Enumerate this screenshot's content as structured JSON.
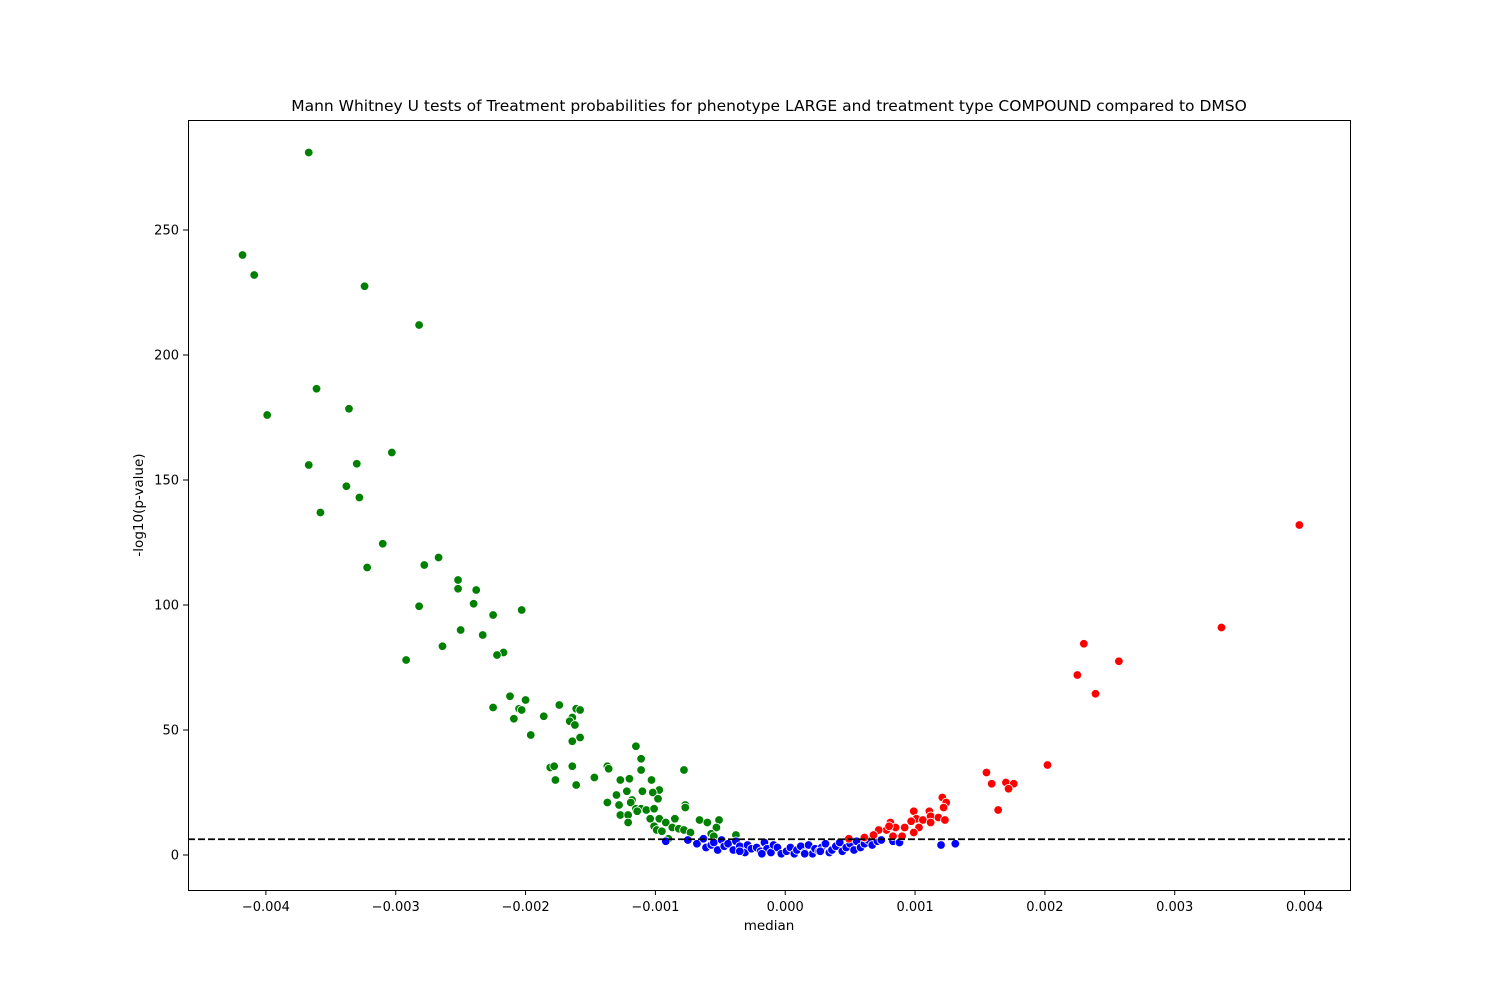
{
  "chart_data": {
    "type": "scatter",
    "title": "Mann Whitney U tests of Treatment probabilities for phenotype LARGE and treatment type COMPOUND compared to DMSO",
    "xlabel": "median",
    "ylabel": "-log10(p-value)",
    "xlim": [
      -0.0046,
      0.00435
    ],
    "ylim": [
      -14,
      294
    ],
    "xticks": [
      -0.004,
      -0.003,
      -0.002,
      -0.001,
      0.0,
      0.001,
      0.002,
      0.003,
      0.004
    ],
    "xtick_labels": [
      "−0.004",
      "−0.003",
      "−0.002",
      "−0.001",
      "0.000",
      "0.001",
      "0.002",
      "0.003",
      "0.004"
    ],
    "yticks": [
      0,
      50,
      100,
      150,
      200,
      250
    ],
    "ytick_labels": [
      "0",
      "50",
      "100",
      "150",
      "200",
      "250"
    ],
    "grid": false,
    "threshold": {
      "y": 6.3,
      "style": "dashed",
      "color": "#000000"
    },
    "series": [
      {
        "color": "#008000",
        "points": [
          [
            -0.00367,
            281
          ],
          [
            -0.00418,
            240
          ],
          [
            -0.00409,
            232
          ],
          [
            -0.00324,
            227.5
          ],
          [
            -0.00282,
            212
          ],
          [
            -0.00361,
            186.5
          ],
          [
            -0.00399,
            176
          ],
          [
            -0.00336,
            178.5
          ],
          [
            -0.00303,
            161
          ],
          [
            -0.00367,
            156
          ],
          [
            -0.0033,
            156.5
          ],
          [
            -0.00338,
            147.5
          ],
          [
            -0.00328,
            143
          ],
          [
            -0.00358,
            137
          ],
          [
            -0.0031,
            124.5
          ],
          [
            -0.00322,
            115
          ],
          [
            -0.00267,
            119
          ],
          [
            -0.00278,
            116
          ],
          [
            -0.00252,
            110
          ],
          [
            -0.00252,
            106.5
          ],
          [
            -0.00238,
            106
          ],
          [
            -0.0024,
            100.5
          ],
          [
            -0.00203,
            98
          ],
          [
            -0.00225,
            96
          ],
          [
            -0.00282,
            99.5
          ],
          [
            -0.0025,
            90
          ],
          [
            -0.00233,
            88
          ],
          [
            -0.00264,
            83.5
          ],
          [
            -0.00217,
            81
          ],
          [
            -0.00222,
            80
          ],
          [
            -0.00292,
            78
          ],
          [
            -0.00212,
            63.5
          ],
          [
            -0.002,
            62
          ],
          [
            -0.00174,
            60
          ],
          [
            -0.00225,
            59
          ],
          [
            -0.00205,
            58.5
          ],
          [
            -0.00203,
            58
          ],
          [
            -0.00161,
            58.5
          ],
          [
            -0.00158,
            58
          ],
          [
            -0.00186,
            55.5
          ],
          [
            -0.00164,
            55
          ],
          [
            -0.00209,
            54.5
          ],
          [
            -0.00166,
            53.5
          ],
          [
            -0.00162,
            52
          ],
          [
            -0.00196,
            48
          ],
          [
            -0.00158,
            47
          ],
          [
            -0.00164,
            45.5
          ],
          [
            -0.00115,
            43.5
          ],
          [
            -0.00111,
            38.5
          ],
          [
            -0.00103,
            30
          ],
          [
            -0.00111,
            34
          ],
          [
            -0.00137,
            35.5
          ],
          [
            -0.00136,
            34.5
          ],
          [
            -0.00181,
            35
          ],
          [
            -0.00178,
            35.5
          ],
          [
            -0.00164,
            35.5
          ],
          [
            -0.00078,
            34
          ],
          [
            -0.00177,
            30
          ],
          [
            -0.00147,
            31
          ],
          [
            -0.00127,
            30
          ],
          [
            -0.0012,
            30.5
          ],
          [
            -0.00161,
            28
          ],
          [
            -0.0011,
            25.5
          ],
          [
            -0.00122,
            25.5
          ],
          [
            -0.00097,
            26
          ],
          [
            -0.00102,
            25
          ],
          [
            -0.0013,
            24
          ],
          [
            -0.00118,
            22
          ],
          [
            -0.00098,
            22.5
          ],
          [
            -0.00119,
            21
          ],
          [
            -0.00137,
            21
          ],
          [
            -0.00128,
            20
          ],
          [
            -0.00077,
            20
          ],
          [
            -0.00077,
            19
          ],
          [
            -0.00115,
            18.5
          ],
          [
            -0.00111,
            18.5
          ],
          [
            -0.00107,
            18
          ],
          [
            -0.00101,
            18.5
          ],
          [
            -0.00114,
            17.5
          ],
          [
            -0.00127,
            16
          ],
          [
            -0.00121,
            16
          ],
          [
            -0.00104,
            14.5
          ],
          [
            -0.00097,
            14.5
          ],
          [
            -0.00085,
            14.5
          ],
          [
            -0.00066,
            14
          ],
          [
            -0.00051,
            14
          ],
          [
            -0.00092,
            13
          ],
          [
            -0.0006,
            13
          ],
          [
            -0.00121,
            13
          ],
          [
            -0.00101,
            11.5
          ],
          [
            -0.00087,
            11
          ],
          [
            -0.00053,
            11
          ],
          [
            -0.00099,
            10
          ],
          [
            -0.00082,
            10.5
          ],
          [
            -0.00078,
            10
          ],
          [
            -0.00095,
            9.5
          ],
          [
            -0.00073,
            9
          ],
          [
            -0.00057,
            8.5
          ],
          [
            -0.00038,
            8
          ],
          [
            -0.00055,
            7.5
          ],
          [
            -0.0009,
            6.5
          ]
        ]
      },
      {
        "color": "#0000ff",
        "points": [
          [
            -0.00092,
            5.5
          ],
          [
            -0.00075,
            6
          ],
          [
            -0.00068,
            4.5
          ],
          [
            -0.00063,
            6.5
          ],
          [
            -0.00061,
            3
          ],
          [
            -0.00057,
            4
          ],
          [
            -0.00055,
            5
          ],
          [
            -0.00052,
            2
          ],
          [
            -0.00049,
            6
          ],
          [
            -0.00047,
            3.5
          ],
          [
            -0.00044,
            4.5
          ],
          [
            -0.0004,
            2
          ],
          [
            -0.00038,
            5.5
          ],
          [
            -0.00035,
            3.5
          ],
          [
            -0.00031,
            1
          ],
          [
            -0.00029,
            4
          ],
          [
            -0.00026,
            2.5
          ],
          [
            -0.00022,
            3
          ],
          [
            -0.00019,
            1.5
          ],
          [
            -0.00016,
            5
          ],
          [
            -0.00014,
            2.5
          ],
          [
            -0.00011,
            1
          ],
          [
            -9e-05,
            4
          ],
          [
            -6e-05,
            3
          ],
          [
            -3e-05,
            0.5
          ],
          [
            1e-05,
            1.5
          ],
          [
            4e-05,
            3
          ],
          [
            7e-05,
            0.5
          ],
          [
            9e-05,
            2
          ],
          [
            0.00012,
            3.5
          ],
          [
            0.00015,
            1
          ],
          [
            0.00018,
            4
          ],
          [
            0.00021,
            0.5
          ],
          [
            0.00023,
            2.5
          ],
          [
            0.00026,
            1.5
          ],
          [
            0.00028,
            3
          ],
          [
            0.00031,
            4.5
          ],
          [
            0.00034,
            1
          ],
          [
            0.00036,
            2
          ],
          [
            0.00039,
            3.5
          ],
          [
            0.00042,
            5
          ],
          [
            0.00044,
            1.5
          ],
          [
            0.00047,
            3
          ],
          [
            0.0005,
            4.5
          ],
          [
            0.00053,
            2
          ],
          [
            0.00055,
            5.5
          ],
          [
            0.00058,
            3
          ],
          [
            0.00061,
            4.5
          ],
          [
            0.00064,
            6
          ],
          [
            0.00067,
            4
          ],
          [
            0.00071,
            5.5
          ],
          [
            0.00074,
            6
          ],
          [
            0.00083,
            5.5
          ],
          [
            0.00088,
            5
          ],
          [
            0.0012,
            4
          ],
          [
            0.00131,
            4.5
          ],
          [
            -0.00035,
            1.5
          ],
          [
            0.00015,
            0.5
          ],
          [
            0.00027,
            1.5
          ],
          [
            -0.00018,
            0.5
          ]
        ]
      },
      {
        "color": "#ff0000",
        "points": [
          [
            0.00396,
            132
          ],
          [
            0.00336,
            91
          ],
          [
            0.0023,
            84.5
          ],
          [
            0.00257,
            77.5
          ],
          [
            0.00225,
            72
          ],
          [
            0.00239,
            64.5
          ],
          [
            0.00202,
            36
          ],
          [
            0.00155,
            33
          ],
          [
            0.0017,
            29
          ],
          [
            0.00176,
            28.5
          ],
          [
            0.00159,
            28.5
          ],
          [
            0.00172,
            26.5
          ],
          [
            0.00164,
            18
          ],
          [
            0.00121,
            23
          ],
          [
            0.00124,
            21
          ],
          [
            0.00122,
            19
          ],
          [
            0.00099,
            17.5
          ],
          [
            0.00111,
            17.5
          ],
          [
            0.00112,
            15.5
          ],
          [
            0.00118,
            15
          ],
          [
            0.00101,
            14.5
          ],
          [
            0.00106,
            14
          ],
          [
            0.00123,
            14
          ],
          [
            0.00097,
            13.5
          ],
          [
            0.00112,
            13
          ],
          [
            0.00081,
            13
          ],
          [
            0.00085,
            11
          ],
          [
            0.00092,
            11
          ],
          [
            0.00103,
            11
          ],
          [
            0.00078,
            10
          ],
          [
            0.0008,
            11.5
          ],
          [
            0.00072,
            10
          ],
          [
            0.00099,
            9
          ],
          [
            0.00068,
            8
          ],
          [
            0.0009,
            7.5
          ],
          [
            0.00061,
            7
          ],
          [
            0.00049,
            6.5
          ],
          [
            0.00083,
            7.5
          ]
        ]
      }
    ]
  }
}
